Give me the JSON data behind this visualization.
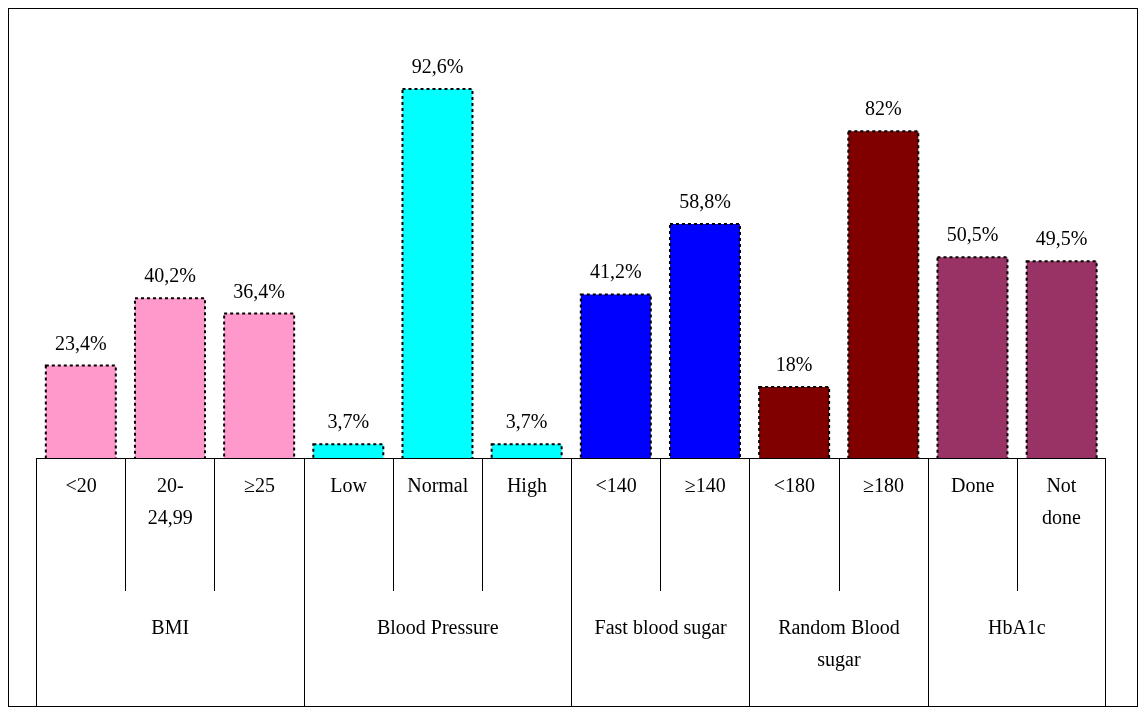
{
  "chart_data": {
    "type": "bar",
    "categories": [
      "<20",
      "20-24,99",
      "≥25",
      "Low",
      "Normal",
      "High",
      "<140",
      "≥140",
      "<180",
      "≥180",
      "Done",
      "Not done"
    ],
    "values": [
      23.4,
      40.2,
      36.4,
      3.7,
      92.6,
      3.7,
      41.2,
      58.8,
      18,
      82,
      50.5,
      49.5
    ],
    "colors": [
      "#ff99cc",
      "#ff99cc",
      "#ff99cc",
      "#00ffff",
      "#00ffff",
      "#00ffff",
      "#0000ff",
      "#0000ff",
      "#800000",
      "#800000",
      "#993366",
      "#993366"
    ],
    "value_labels": [
      "23,4%",
      "40,2%",
      "36,4%",
      "3,7%",
      "92,6%",
      "3,7%",
      "41,2%",
      "58,8%",
      "18%",
      "82%",
      "50,5%",
      "49,5%"
    ],
    "annotations": [
      "BMI",
      "Blood Pressure",
      "Fast blood sugar",
      "Random Blood sugar",
      "HbA1c"
    ]
  }
}
